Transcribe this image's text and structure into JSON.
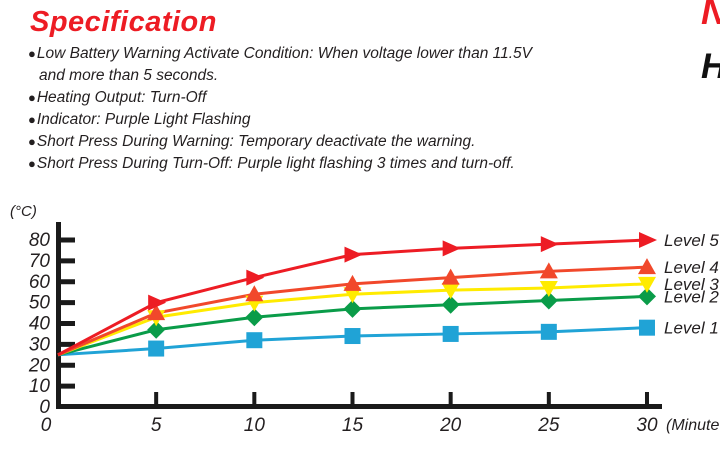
{
  "title": "Specification",
  "bullets": [
    {
      "bullet": "●",
      "line1": "Low Battery Warning Activate Condition: When voltage lower than 11.5V",
      "line2": "and more than 5 seconds."
    },
    {
      "bullet": "●",
      "line1": "Heating Output: Turn-Off"
    },
    {
      "bullet": "●",
      "line1": "Indicator: Purple Light Flashing"
    },
    {
      "bullet": "●",
      "line1": "Short Press During Warning: Temporary deactivate the warning."
    },
    {
      "bullet": "●",
      "line1": "Short Press During Turn-Off: Purple light flashing 3 times and turn-off."
    }
  ],
  "clipped_right_text": {
    "red_partial": "N",
    "black_partial": "H"
  },
  "colors": {
    "title": "#ED1C24",
    "text": "#231F20",
    "axis": "#1A1A1A"
  },
  "chart_data": {
    "type": "line",
    "x": [
      0,
      5,
      10,
      15,
      20,
      25,
      30
    ],
    "xticks": [
      0,
      5,
      10,
      15,
      20,
      25,
      30
    ],
    "yticks": [
      0,
      10,
      20,
      30,
      40,
      50,
      60,
      70,
      80
    ],
    "xlabel": "(Minute",
    "ylabel": "(°C)",
    "xlim": [
      0,
      30
    ],
    "ylim": [
      0,
      80
    ],
    "grid": false,
    "legend_position": "right-of-line-ends",
    "series": [
      {
        "name": "Level 5",
        "marker": "triangle-right",
        "color": "#ED1C24",
        "values": [
          25,
          50,
          62,
          73,
          76,
          78,
          80
        ]
      },
      {
        "name": "Level 4",
        "marker": "triangle-up",
        "color": "#F1482B",
        "values": [
          25,
          45,
          54,
          59,
          62,
          65,
          67
        ]
      },
      {
        "name": "Level 3",
        "marker": "triangle-down",
        "color": "#FFEB00",
        "values": [
          25,
          43,
          50,
          54,
          56,
          57,
          59
        ]
      },
      {
        "name": "Level 2",
        "marker": "diamond",
        "color": "#0A9C49",
        "values": [
          25,
          37,
          43,
          47,
          49,
          51,
          53
        ]
      },
      {
        "name": "Level 1",
        "marker": "square",
        "color": "#20A3D6",
        "values": [
          25,
          28,
          32,
          34,
          35,
          36,
          38
        ]
      }
    ]
  }
}
